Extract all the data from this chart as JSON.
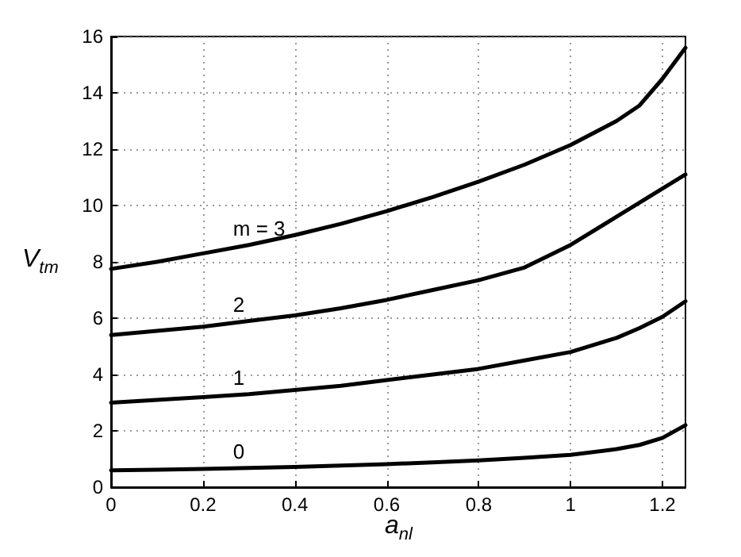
{
  "chart_data": {
    "type": "line",
    "xlabel": "a$_{nl}$",
    "ylabel": "V$_{tm}$",
    "x": [
      0,
      0.1,
      0.2,
      0.3,
      0.4,
      0.5,
      0.6,
      0.7,
      0.8,
      0.9,
      1.0,
      1.1,
      1.15,
      1.2,
      1.25
    ],
    "series": [
      {
        "name": "m = 3",
        "color": "#000000",
        "values": [
          7.75,
          8.0,
          8.3,
          8.6,
          8.95,
          9.35,
          9.8,
          10.3,
          10.85,
          11.45,
          12.15,
          13.0,
          13.55,
          14.5,
          15.6
        ]
      },
      {
        "name": "2",
        "color": "#000000",
        "values": [
          5.4,
          5.55,
          5.7,
          5.9,
          6.1,
          6.35,
          6.65,
          7.0,
          7.35,
          7.8,
          8.6,
          9.6,
          10.1,
          10.6,
          11.1
        ]
      },
      {
        "name": "1",
        "color": "#000000",
        "values": [
          3.0,
          3.1,
          3.2,
          3.3,
          3.45,
          3.6,
          3.8,
          4.0,
          4.2,
          4.5,
          4.8,
          5.3,
          5.65,
          6.05,
          6.6
        ]
      },
      {
        "name": "0",
        "color": "#000000",
        "values": [
          0.6,
          0.62,
          0.65,
          0.68,
          0.72,
          0.77,
          0.82,
          0.88,
          0.95,
          1.04,
          1.15,
          1.35,
          1.5,
          1.75,
          2.2
        ]
      }
    ],
    "xlim": [
      0,
      1.25
    ],
    "xticks": [
      0,
      0.2,
      0.4,
      0.6,
      0.8,
      1,
      1.2
    ],
    "ylim": [
      0,
      16
    ],
    "yticks": [
      0,
      2,
      4,
      6,
      8,
      10,
      12,
      14,
      16
    ],
    "grid": true,
    "marker": "none",
    "line_style": "solid"
  }
}
